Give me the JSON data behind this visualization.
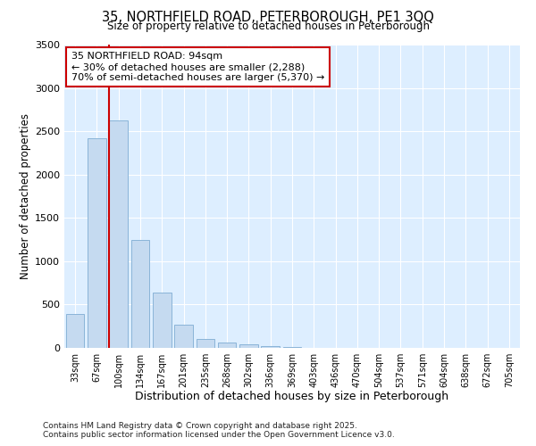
{
  "title": "35, NORTHFIELD ROAD, PETERBOROUGH, PE1 3QQ",
  "subtitle": "Size of property relative to detached houses in Peterborough",
  "xlabel": "Distribution of detached houses by size in Peterborough",
  "ylabel": "Number of detached properties",
  "categories": [
    "33sqm",
    "67sqm",
    "100sqm",
    "134sqm",
    "167sqm",
    "201sqm",
    "235sqm",
    "268sqm",
    "302sqm",
    "336sqm",
    "369sqm",
    "403sqm",
    "436sqm",
    "470sqm",
    "504sqm",
    "537sqm",
    "571sqm",
    "604sqm",
    "638sqm",
    "672sqm",
    "705sqm"
  ],
  "values": [
    390,
    2420,
    2630,
    1250,
    640,
    265,
    105,
    60,
    40,
    25,
    10,
    4,
    0,
    0,
    0,
    0,
    0,
    0,
    0,
    0,
    0
  ],
  "bar_color": "#c5daf0",
  "bar_edge_color": "#8ab4d8",
  "vline_x_index": 2,
  "vline_color": "#cc0000",
  "annotation_title": "35 NORTHFIELD ROAD: 94sqm",
  "annotation_line2": "← 30% of detached houses are smaller (2,288)",
  "annotation_line3": "70% of semi-detached houses are larger (5,370) →",
  "annotation_box_color": "#cc0000",
  "ylim": [
    0,
    3500
  ],
  "yticks": [
    0,
    500,
    1000,
    1500,
    2000,
    2500,
    3000,
    3500
  ],
  "bg_color": "#ffffff",
  "plot_bg_color": "#ddeeff",
  "grid_color": "#ffffff",
  "footer_line1": "Contains HM Land Registry data © Crown copyright and database right 2025.",
  "footer_line2": "Contains public sector information licensed under the Open Government Licence v3.0."
}
